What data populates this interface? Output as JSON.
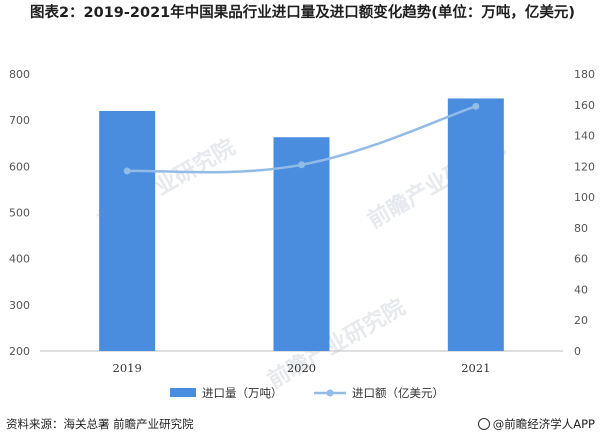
{
  "title": "图表2：2019-2021年中国果品行业进口量及进口额变化趋势(单位：万吨，亿美元)",
  "footer": {
    "source": "资料来源：海关总署 前瞻产业研究院",
    "brand": "@前瞻经济学人APP"
  },
  "watermark": "前瞻产业研究院",
  "colors": {
    "bar": "#4a8ddf",
    "line": "#92bbe6",
    "axis": "#bfbfbf",
    "tick_text": "#555555"
  },
  "chart_data": {
    "type": "bar",
    "categories": [
      "2019",
      "2020",
      "2021"
    ],
    "series": [
      {
        "name": "进口量（万吨）",
        "type": "bar",
        "axis": "left",
        "values": [
          720,
          663,
          747
        ]
      },
      {
        "name": "进口额（亿美元）",
        "type": "line",
        "axis": "right",
        "values": [
          117,
          121,
          159
        ]
      }
    ],
    "y_left": {
      "min": 200,
      "max": 800,
      "step": 100,
      "ticks": [
        "200",
        "300",
        "400",
        "500",
        "600",
        "700",
        "800"
      ]
    },
    "y_right": {
      "min": 0,
      "max": 180,
      "step": 20,
      "ticks": [
        "0",
        "20",
        "40",
        "60",
        "80",
        "100",
        "120",
        "140",
        "160",
        "180"
      ]
    },
    "legend_position": "bottom",
    "grid": false
  }
}
